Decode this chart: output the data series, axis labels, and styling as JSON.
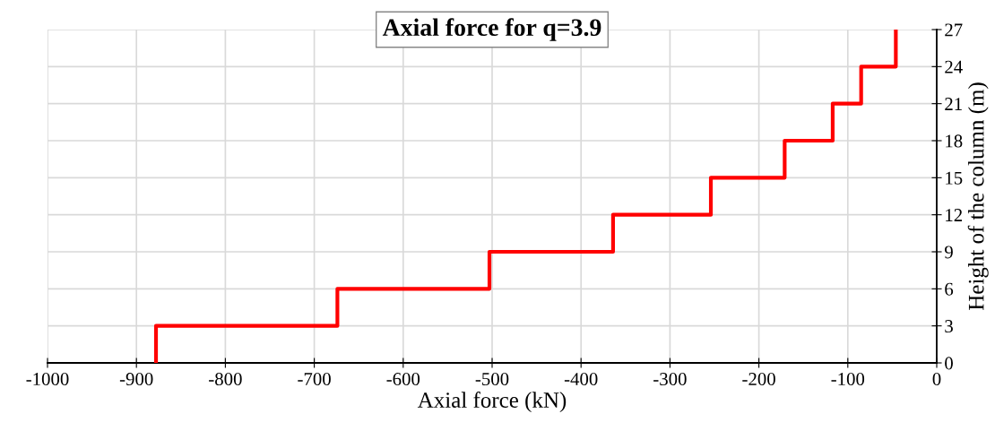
{
  "chart_data": {
    "type": "line",
    "title": "Axial force for q=3.9",
    "xlabel": "Axial force (kN)",
    "ylabel": "Height of the column (m)",
    "x": [
      -878,
      -878,
      -674,
      -674,
      -503,
      -503,
      -364,
      -364,
      -254,
      -254,
      -171,
      -171,
      -117,
      -117,
      -85,
      -85,
      -46,
      -46
    ],
    "series": [
      {
        "color": "#ff0000",
        "values": [
          0,
          3,
          3,
          6,
          6,
          9,
          9,
          12,
          12,
          15,
          15,
          18,
          18,
          21,
          21,
          24,
          24,
          27
        ]
      }
    ],
    "xlim": [
      -1000,
      0
    ],
    "xticks": [
      -1000,
      -900,
      -800,
      -700,
      -600,
      -500,
      -400,
      -300,
      -200,
      -100,
      0
    ],
    "ylim": [
      0,
      27
    ],
    "yticks": [
      0,
      3,
      6,
      9,
      12,
      15,
      18,
      21,
      24,
      27
    ],
    "grid": true,
    "legend": false,
    "marker": "none",
    "line_style": "solid"
  }
}
